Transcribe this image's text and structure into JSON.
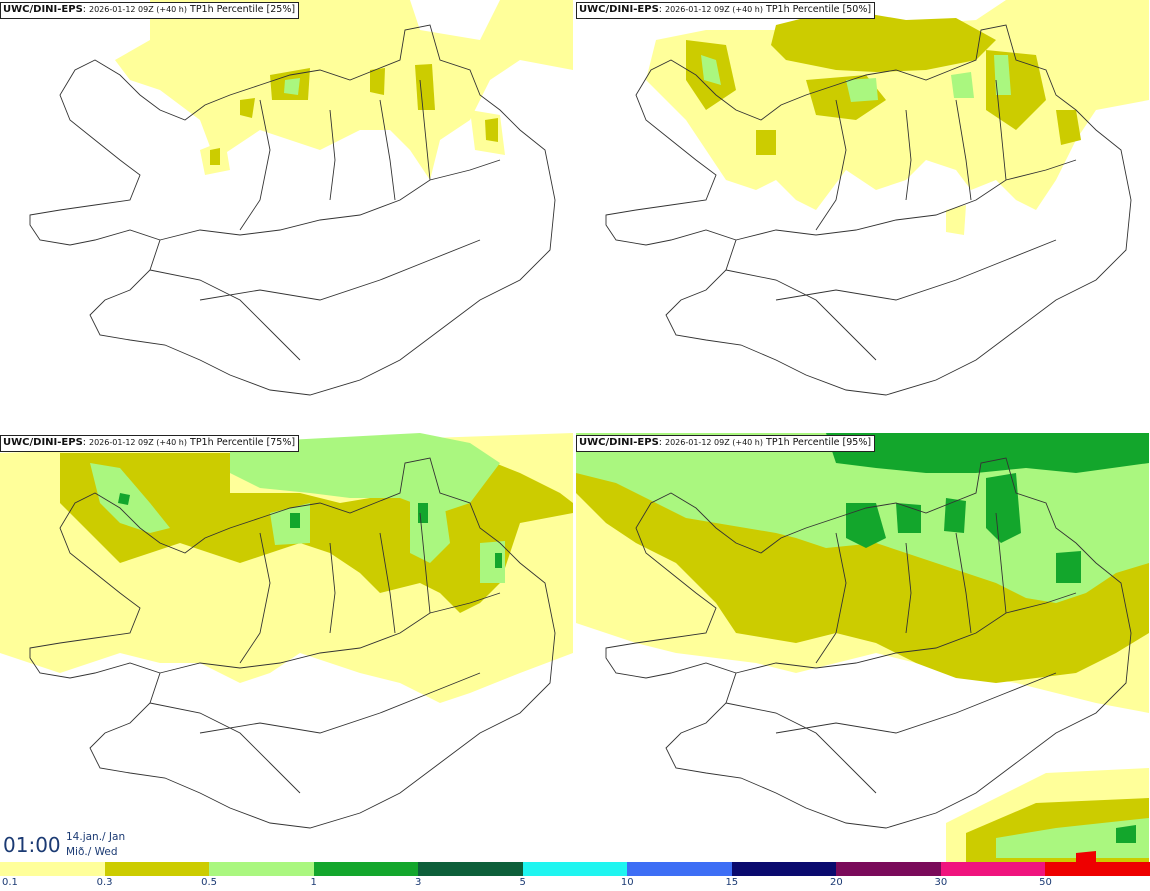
{
  "panels": [
    {
      "model": "UWC/DINI-EPS",
      "run": "2026-01-12 09Z (+40 h)",
      "field": "TP1h Percentile [25%]"
    },
    {
      "model": "UWC/DINI-EPS",
      "run": "2026-01-12 09Z (+40 h)",
      "field": "TP1h Percentile [50%]"
    },
    {
      "model": "UWC/DINI-EPS",
      "run": "2026-01-12 09Z (+40 h)",
      "field": "TP1h Percentile [75%]"
    },
    {
      "model": "UWC/DINI-EPS",
      "run": "2026-01-12 09Z (+40 h)",
      "field": "TP1h Percentile [95%]"
    }
  ],
  "valid_time": {
    "time": "01:00",
    "date_line": "14.jan./ Jan",
    "day_line": "Mið./ Wed"
  },
  "legend": {
    "ticks": [
      "0.1",
      "0.3",
      "0.5",
      "1",
      "3",
      "5",
      "10",
      "15",
      "20",
      "30",
      "50"
    ],
    "colors": [
      "#ffff9a",
      "#cccc00",
      "#aaf77f",
      "#13a62c",
      "#0d5f3a",
      "#1ff5f0",
      "#3d6ef5",
      "#0a0a6e",
      "#7a0a5a",
      "#f0147e",
      "#ee0000"
    ]
  }
}
